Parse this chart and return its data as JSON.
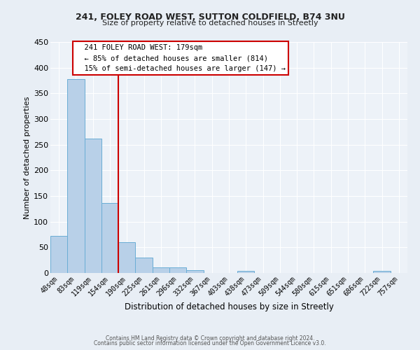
{
  "title1": "241, FOLEY ROAD WEST, SUTTON COLDFIELD, B74 3NU",
  "title2": "Size of property relative to detached houses in Streetly",
  "xlabel": "Distribution of detached houses by size in Streetly",
  "ylabel": "Number of detached properties",
  "bar_labels": [
    "48sqm",
    "83sqm",
    "119sqm",
    "154sqm",
    "190sqm",
    "225sqm",
    "261sqm",
    "296sqm",
    "332sqm",
    "367sqm",
    "403sqm",
    "438sqm",
    "473sqm",
    "509sqm",
    "544sqm",
    "580sqm",
    "615sqm",
    "651sqm",
    "686sqm",
    "722sqm",
    "757sqm"
  ],
  "bar_values": [
    72,
    378,
    262,
    137,
    60,
    30,
    11,
    11,
    5,
    0,
    0,
    4,
    0,
    0,
    0,
    0,
    0,
    0,
    0,
    4,
    0
  ],
  "bar_color": "#b8d0e8",
  "bar_edge_color": "#6aadd5",
  "vline_color": "#cc0000",
  "ylim": [
    0,
    450
  ],
  "yticks": [
    0,
    50,
    100,
    150,
    200,
    250,
    300,
    350,
    400,
    450
  ],
  "annotation_title": "241 FOLEY ROAD WEST: 179sqm",
  "annotation_line1": "← 85% of detached houses are smaller (814)",
  "annotation_line2": "15% of semi-detached houses are larger (147) →",
  "annotation_box_color": "#cc0000",
  "footer1": "Contains HM Land Registry data © Crown copyright and database right 2024.",
  "footer2": "Contains public sector information licensed under the Open Government Licence v3.0.",
  "bg_color": "#e8eef5",
  "plot_bg_color": "#edf2f8",
  "grid_color": "#ffffff"
}
